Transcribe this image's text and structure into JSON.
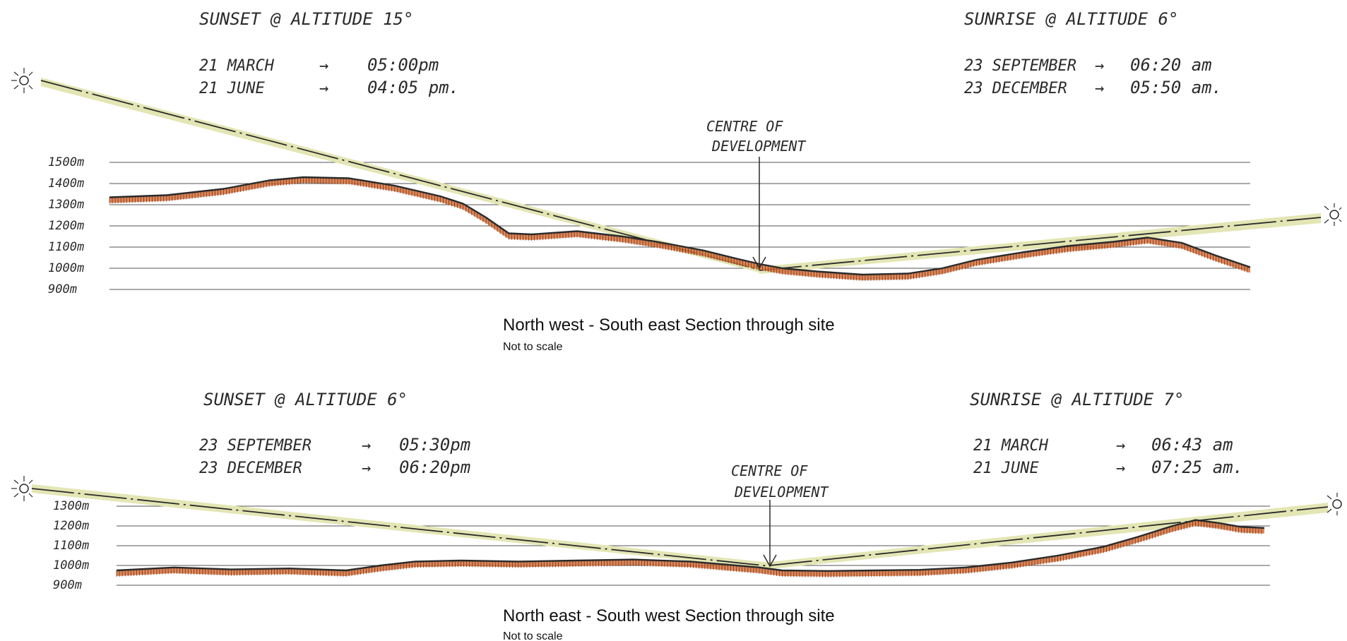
{
  "colors": {
    "ink": "#2a2a2a",
    "grid": "#555555",
    "terrain_fill": "#d9703a",
    "sun_band": "#e3e6b4"
  },
  "sections": [
    {
      "title": "North west - South east Section through site",
      "subtitle": "Not to scale",
      "sunset": {
        "label": "SUNSET @ ALTITUDE 15°",
        "times": [
          {
            "date": "21 MARCH",
            "time": "05:00pm"
          },
          {
            "date": "21 JUNE",
            "time": "04:05 pm."
          }
        ]
      },
      "sunrise": {
        "label": "SUNRISE @ ALTITUDE 6°",
        "times": [
          {
            "date": "23 SEPTEMBER",
            "time": "06:20 am"
          },
          {
            "date": "23 DECEMBER",
            "time": "05:50 am."
          }
        ]
      },
      "centre_label": [
        "CENTRE OF",
        "DEVELOPMENT"
      ],
      "elevations": [
        "1500m",
        "1400m",
        "1300m",
        "1200m",
        "1100m",
        "1000m",
        "900m"
      ],
      "terrain_profile": [
        [
          0.0,
          1335
        ],
        [
          0.05,
          1345
        ],
        [
          0.1,
          1375
        ],
        [
          0.14,
          1415
        ],
        [
          0.17,
          1430
        ],
        [
          0.21,
          1425
        ],
        [
          0.25,
          1390
        ],
        [
          0.29,
          1340
        ],
        [
          0.31,
          1305
        ],
        [
          0.33,
          1240
        ],
        [
          0.35,
          1165
        ],
        [
          0.37,
          1160
        ],
        [
          0.41,
          1175
        ],
        [
          0.45,
          1150
        ],
        [
          0.48,
          1125
        ],
        [
          0.52,
          1085
        ],
        [
          0.55,
          1045
        ],
        [
          0.57,
          1020
        ],
        [
          0.59,
          1000
        ],
        [
          0.62,
          985
        ],
        [
          0.66,
          970
        ],
        [
          0.7,
          975
        ],
        [
          0.73,
          1000
        ],
        [
          0.76,
          1040
        ],
        [
          0.8,
          1075
        ],
        [
          0.84,
          1105
        ],
        [
          0.88,
          1125
        ],
        [
          0.91,
          1145
        ],
        [
          0.94,
          1120
        ],
        [
          0.97,
          1060
        ],
        [
          1.0,
          1005
        ]
      ]
    },
    {
      "title": "North east - South west Section through site",
      "subtitle": "Not to scale",
      "sunset": {
        "label": "SUNSET @ ALTITUDE 6°",
        "times": [
          {
            "date": "23 SEPTEMBER",
            "time": "05:30pm"
          },
          {
            "date": "23 DECEMBER",
            "time": "06:20pm"
          }
        ]
      },
      "sunrise": {
        "label": "SUNRISE @ ALTITUDE 7°",
        "times": [
          {
            "date": "21 MARCH",
            "time": "06:43 am"
          },
          {
            "date": "21 JUNE",
            "time": "07:25 am."
          }
        ]
      },
      "centre_label": [
        "CENTRE OF",
        "DEVELOPMENT"
      ],
      "elevations": [
        "1300m",
        "1200m",
        "1100m",
        "1000m",
        "900m"
      ],
      "terrain_profile": [
        [
          0.0,
          975
        ],
        [
          0.05,
          990
        ],
        [
          0.1,
          980
        ],
        [
          0.15,
          985
        ],
        [
          0.2,
          975
        ],
        [
          0.23,
          1000
        ],
        [
          0.26,
          1020
        ],
        [
          0.3,
          1025
        ],
        [
          0.35,
          1020
        ],
        [
          0.4,
          1025
        ],
        [
          0.45,
          1030
        ],
        [
          0.5,
          1020
        ],
        [
          0.53,
          1005
        ],
        [
          0.56,
          990
        ],
        [
          0.58,
          975
        ],
        [
          0.62,
          972
        ],
        [
          0.66,
          975
        ],
        [
          0.7,
          978
        ],
        [
          0.74,
          990
        ],
        [
          0.78,
          1015
        ],
        [
          0.82,
          1050
        ],
        [
          0.86,
          1095
        ],
        [
          0.89,
          1145
        ],
        [
          0.92,
          1200
        ],
        [
          0.94,
          1230
        ],
        [
          0.96,
          1215
        ],
        [
          0.98,
          1195
        ],
        [
          1.0,
          1190
        ]
      ]
    }
  ]
}
